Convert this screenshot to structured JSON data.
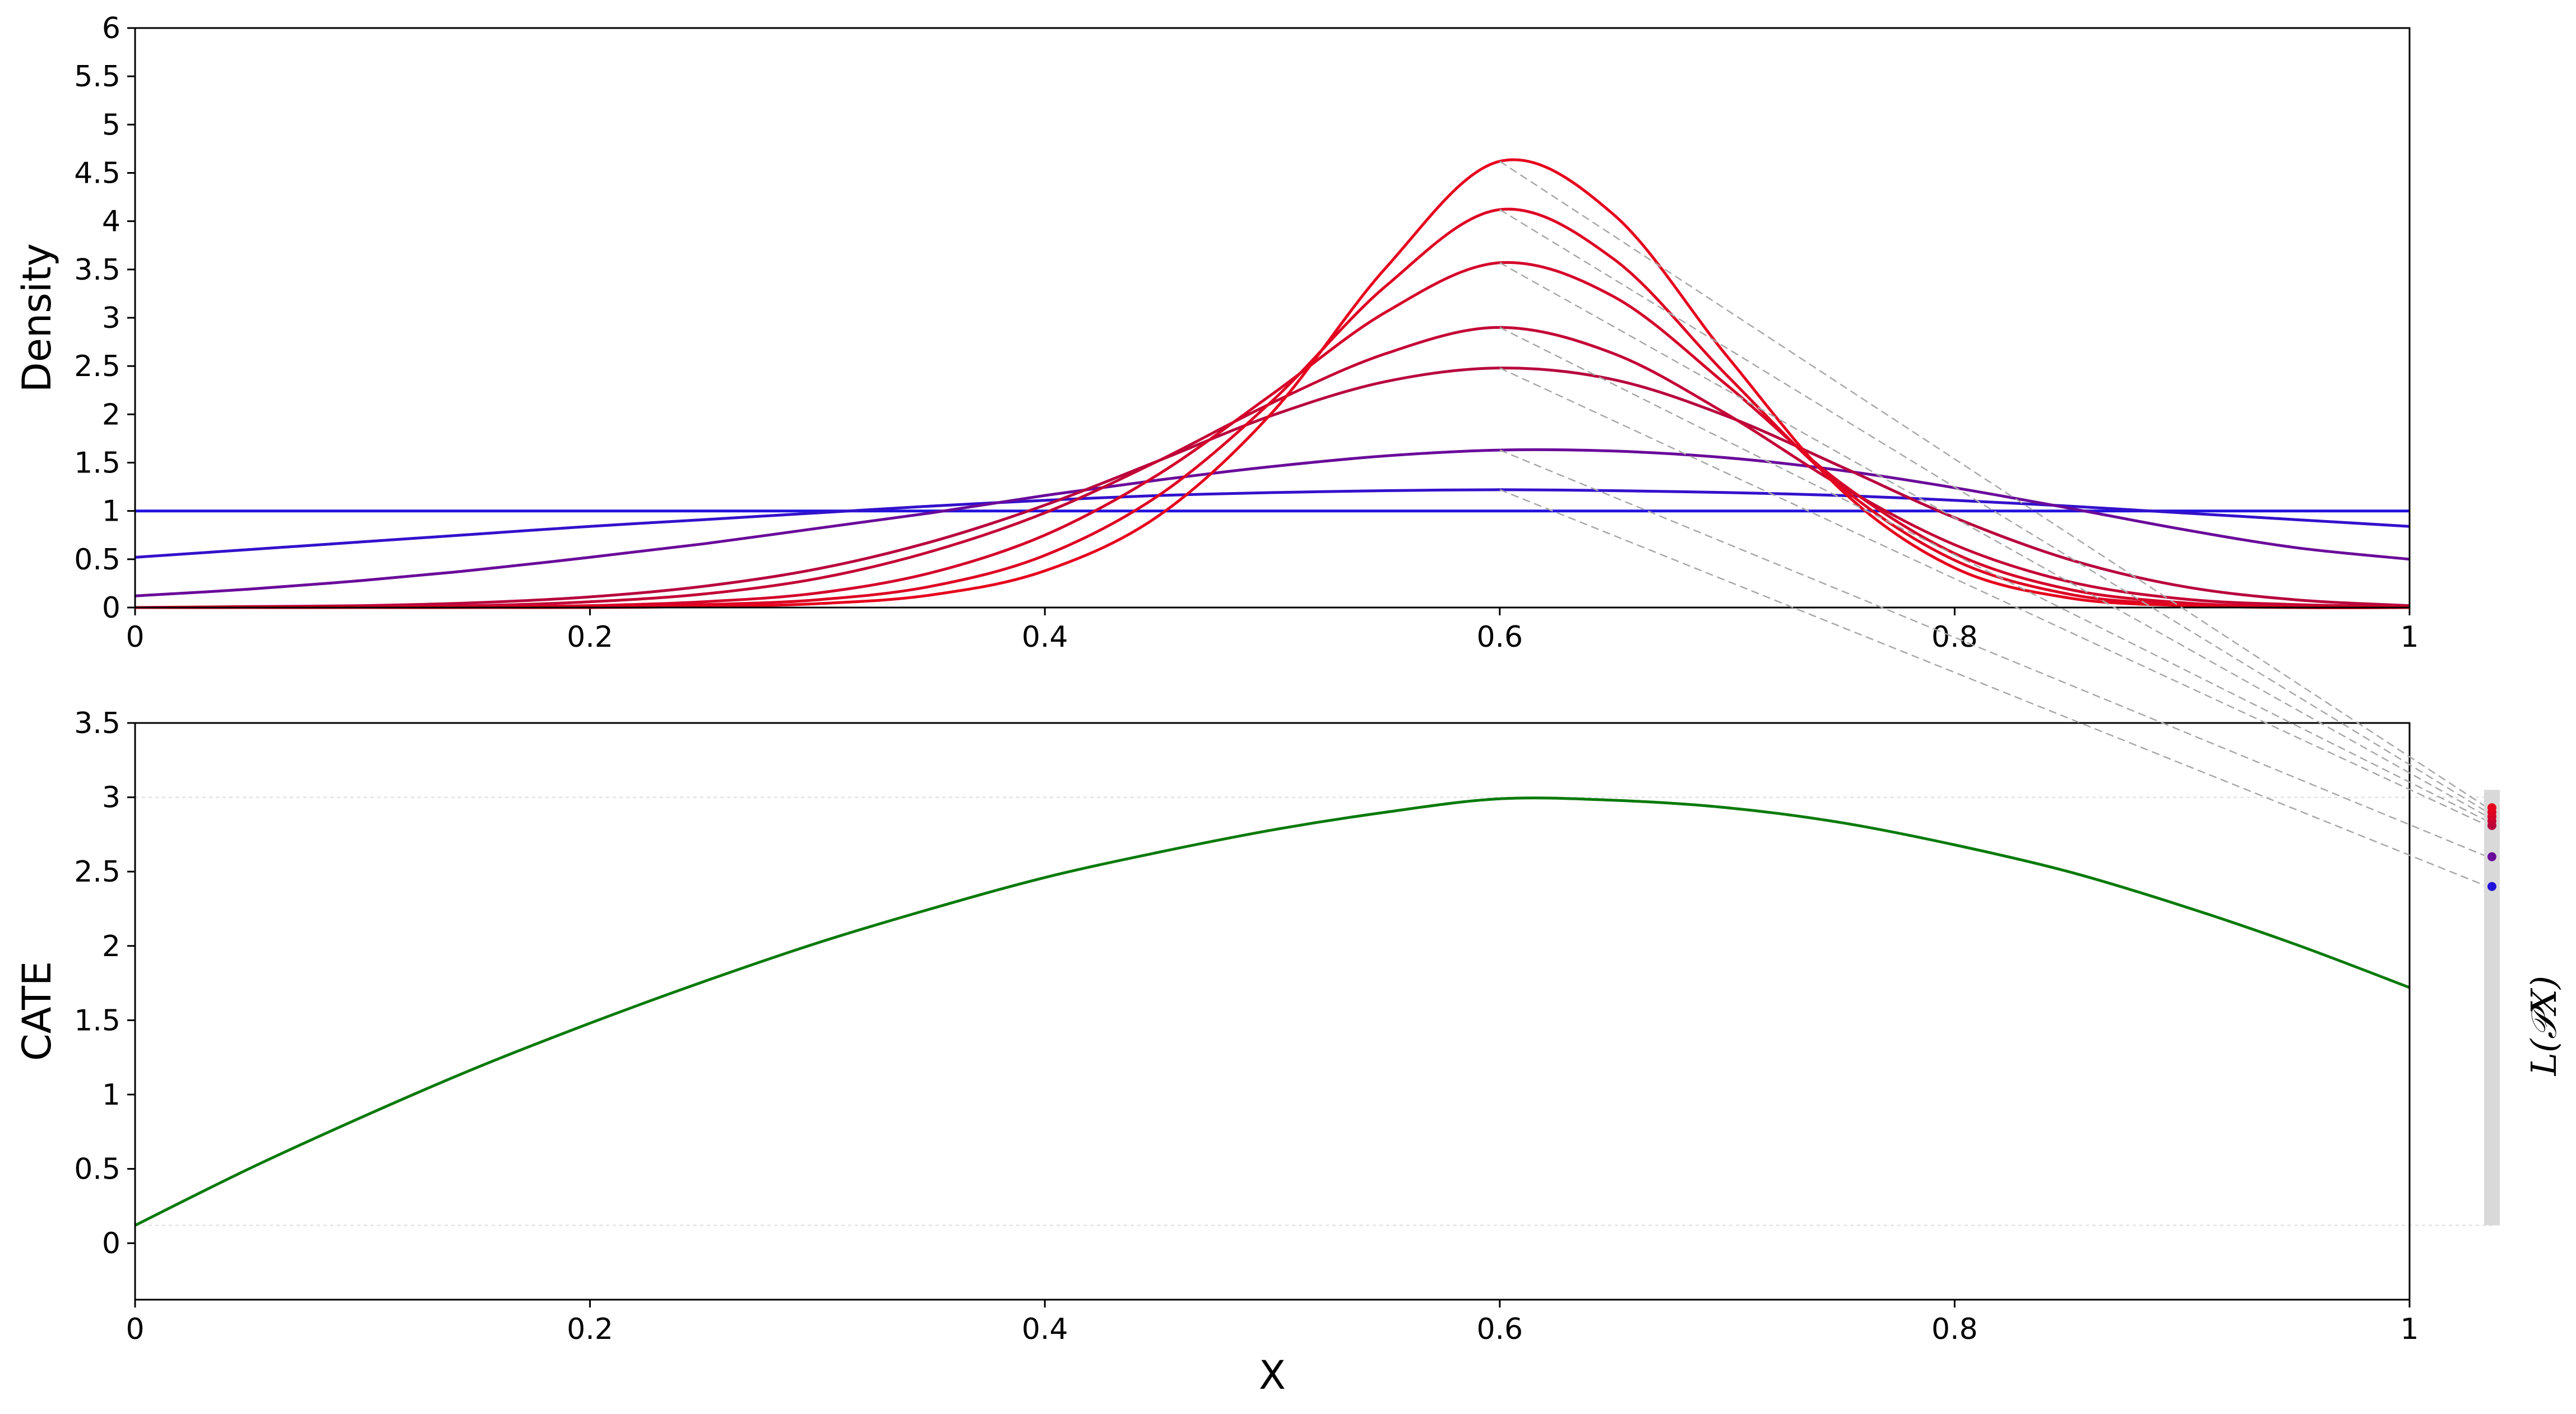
{
  "chart_data": [
    {
      "type": "line",
      "panel": "top",
      "ylabel": "Density",
      "xlim": [
        0,
        1
      ],
      "ylim": [
        0,
        6
      ],
      "xticks": [
        {
          "v": 0,
          "label": "0"
        },
        {
          "v": 0.2,
          "label": "0.2"
        },
        {
          "v": 0.4,
          "label": "0.4"
        },
        {
          "v": 0.6,
          "label": "0.6"
        },
        {
          "v": 0.8,
          "label": "0.8"
        },
        {
          "v": 1,
          "label": "1"
        }
      ],
      "yticks": [
        {
          "v": 0,
          "label": "0"
        },
        {
          "v": 0.5,
          "label": "0.5"
        },
        {
          "v": 1,
          "label": "1"
        },
        {
          "v": 1.5,
          "label": "1.5"
        },
        {
          "v": 2,
          "label": "2"
        },
        {
          "v": 2.5,
          "label": "2.5"
        },
        {
          "v": 3,
          "label": "3"
        },
        {
          "v": 3.5,
          "label": "3.5"
        },
        {
          "v": 4,
          "label": "4"
        },
        {
          "v": 4.5,
          "label": "4.5"
        },
        {
          "v": 5,
          "label": "5"
        },
        {
          "v": 5.5,
          "label": "5.5"
        },
        {
          "v": 6,
          "label": "6"
        }
      ],
      "x": [
        0,
        0.05,
        0.1,
        0.15,
        0.2,
        0.25,
        0.3,
        0.35,
        0.4,
        0.45,
        0.5,
        0.55,
        0.6,
        0.65,
        0.7,
        0.75,
        0.8,
        0.85,
        0.9,
        0.95,
        1.0
      ],
      "series": [
        {
          "color": "#2211dd",
          "values": [
            1.0,
            1.0,
            1.0,
            1.0,
            1.0,
            1.0,
            1.0,
            1.0,
            1.0,
            1.0,
            1.0,
            1.0,
            1.0,
            1.0,
            1.0,
            1.0,
            1.0,
            1.0,
            1.0,
            1.0,
            1.0
          ]
        },
        {
          "color": "#3311cc",
          "values": [
            0.52,
            0.6,
            0.68,
            0.76,
            0.84,
            0.91,
            0.98,
            1.05,
            1.11,
            1.16,
            1.19,
            1.21,
            1.22,
            1.21,
            1.19,
            1.16,
            1.11,
            1.05,
            0.98,
            0.91,
            0.84
          ]
        },
        {
          "color": "#6a0a9a",
          "values": [
            0.12,
            0.19,
            0.28,
            0.39,
            0.52,
            0.66,
            0.82,
            0.98,
            1.16,
            1.32,
            1.46,
            1.57,
            1.63,
            1.62,
            1.55,
            1.42,
            1.24,
            1.03,
            0.81,
            0.62,
            0.5
          ]
        },
        {
          "color": "#b8063e",
          "values": [
            0.0,
            0.01,
            0.02,
            0.05,
            0.11,
            0.22,
            0.4,
            0.68,
            1.06,
            1.52,
            1.99,
            2.34,
            2.48,
            2.36,
            1.98,
            1.46,
            0.93,
            0.5,
            0.22,
            0.08,
            0.02
          ]
        },
        {
          "color": "#c30636",
          "values": [
            0.0,
            0.0,
            0.01,
            0.02,
            0.06,
            0.14,
            0.3,
            0.58,
            0.98,
            1.52,
            2.12,
            2.63,
            2.9,
            2.63,
            2.0,
            1.26,
            0.65,
            0.27,
            0.09,
            0.03,
            0.01
          ]
        },
        {
          "color": "#d4052a",
          "values": [
            0.0,
            0.0,
            0.0,
            0.01,
            0.02,
            0.06,
            0.15,
            0.36,
            0.75,
            1.38,
            2.21,
            3.06,
            3.57,
            3.22,
            2.3,
            1.29,
            0.56,
            0.19,
            0.05,
            0.01,
            0.0
          ]
        },
        {
          "color": "#de0423",
          "values": [
            0.0,
            0.0,
            0.0,
            0.0,
            0.01,
            0.03,
            0.08,
            0.22,
            0.54,
            1.16,
            2.14,
            3.33,
            4.12,
            3.61,
            2.4,
            1.25,
            0.49,
            0.14,
            0.03,
            0.0,
            0.0
          ]
        },
        {
          "color": "#e6031d",
          "values": [
            0.0,
            0.0,
            0.0,
            0.0,
            0.0,
            0.01,
            0.04,
            0.13,
            0.38,
            0.95,
            2.02,
            3.52,
            4.62,
            4.07,
            2.6,
            1.22,
            0.41,
            0.1,
            0.02,
            0.0,
            0.0
          ]
        }
      ]
    },
    {
      "type": "line",
      "panel": "bottom",
      "xlabel": "X",
      "ylabel": "CATE",
      "xlim": [
        0,
        1
      ],
      "ylim": [
        -0.38,
        3.5
      ],
      "xticks": [
        {
          "v": 0,
          "label": "0"
        },
        {
          "v": 0.2,
          "label": "0.2"
        },
        {
          "v": 0.4,
          "label": "0.4"
        },
        {
          "v": 0.6,
          "label": "0.6"
        },
        {
          "v": 0.8,
          "label": "0.8"
        },
        {
          "v": 1,
          "label": "1"
        }
      ],
      "yticks": [
        {
          "v": 0,
          "label": "0"
        },
        {
          "v": 0.5,
          "label": "0.5"
        },
        {
          "v": 1,
          "label": "1"
        },
        {
          "v": 1.5,
          "label": "1.5"
        },
        {
          "v": 2,
          "label": "2"
        },
        {
          "v": 2.5,
          "label": "2.5"
        },
        {
          "v": 3,
          "label": "3"
        },
        {
          "v": 3.5,
          "label": "3.5"
        }
      ],
      "x": [
        0,
        0.05,
        0.1,
        0.15,
        0.2,
        0.25,
        0.3,
        0.35,
        0.4,
        0.45,
        0.5,
        0.55,
        0.6,
        0.65,
        0.7,
        0.75,
        0.8,
        0.85,
        0.9,
        0.95,
        1.0
      ],
      "series": [
        {
          "color": "#0a7a0a",
          "values": [
            0.12,
            0.5,
            0.85,
            1.18,
            1.48,
            1.76,
            2.02,
            2.25,
            2.46,
            2.63,
            2.78,
            2.9,
            2.99,
            2.98,
            2.93,
            2.83,
            2.68,
            2.5,
            2.27,
            2.01,
            1.72
          ]
        }
      ],
      "reference_lines": [
        3.0,
        0.12
      ],
      "side_bar": {
        "label": "L(𝒫X)",
        "range": [
          0.12,
          3.05
        ],
        "points": [
          {
            "value": 2.4,
            "color": "#2211dd",
            "from_curve": 0
          },
          {
            "value": 2.6,
            "color": "#6a0a9a",
            "from_curve": 1
          },
          {
            "value": 2.81,
            "color": "#b8063e",
            "from_curve": 2
          },
          {
            "value": 2.84,
            "color": "#c30636",
            "from_curve": 3
          },
          {
            "value": 2.87,
            "color": "#d4052a",
            "from_curve": 4
          },
          {
            "value": 2.9,
            "color": "#de0423",
            "from_curve": 5
          },
          {
            "value": 2.93,
            "color": "#e6031d",
            "from_curve": 6
          }
        ],
        "connector_source_x": 0.6,
        "connector_source_values": [
          1.22,
          1.63,
          2.48,
          2.9,
          3.57,
          4.12,
          4.62
        ]
      }
    }
  ]
}
